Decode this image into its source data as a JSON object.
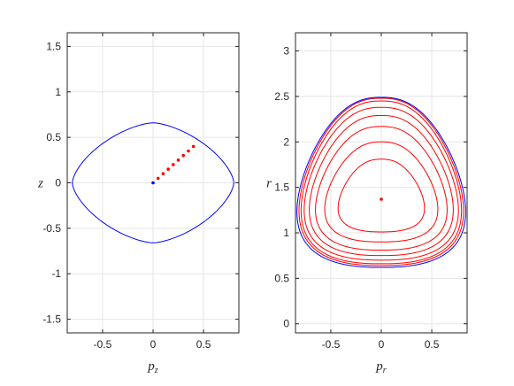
{
  "chart_data": [
    {
      "type": "line",
      "xlabel": "p",
      "xlabel_sub": "z",
      "ylabel": "z",
      "xlim": [
        -0.85,
        0.85
      ],
      "ylim": [
        -1.65,
        1.65
      ],
      "xticks": [
        -0.5,
        0,
        0.5
      ],
      "xtick_labels": [
        "-0.5",
        "0",
        "0.5"
      ],
      "yticks": [
        -1.5,
        -1,
        -0.5,
        0,
        0.5,
        1,
        1.5
      ],
      "ytick_labels": [
        "-1.5",
        "-1",
        "-0.5",
        "0",
        "0.5",
        "1",
        "1.5"
      ],
      "grid": true,
      "series": [
        {
          "kind": "closed-curve",
          "color": "#0000ff",
          "cx": 0,
          "cy": 0,
          "rx": 0.8,
          "ry": 0.66,
          "exponent": 1.55
        }
      ],
      "points": [
        {
          "x": 0.0,
          "y": 0.0,
          "color": "#0000ff"
        },
        {
          "x": 0.05,
          "y": 0.05,
          "color": "#ff0000"
        },
        {
          "x": 0.1,
          "y": 0.1,
          "color": "#ff0000"
        },
        {
          "x": 0.15,
          "y": 0.15,
          "color": "#ff0000"
        },
        {
          "x": 0.2,
          "y": 0.2,
          "color": "#ff0000"
        },
        {
          "x": 0.25,
          "y": 0.25,
          "color": "#ff0000"
        },
        {
          "x": 0.3,
          "y": 0.3,
          "color": "#ff0000"
        },
        {
          "x": 0.35,
          "y": 0.35,
          "color": "#ff0000"
        },
        {
          "x": 0.4,
          "y": 0.4,
          "color": "#ff0000"
        }
      ]
    },
    {
      "type": "line",
      "xlabel": "p",
      "xlabel_sub": "r",
      "ylabel": "r",
      "xlim": [
        -0.85,
        0.85
      ],
      "ylim": [
        -0.1,
        3.2
      ],
      "xticks": [
        -0.5,
        0,
        0.5
      ],
      "xtick_labels": [
        "-0.5",
        "0",
        "0.5"
      ],
      "yticks": [
        0,
        0.5,
        1,
        1.5,
        2,
        2.5,
        3
      ],
      "ytick_labels": [
        "0",
        "0.5",
        "1",
        "1.5",
        "2",
        "2.5",
        "3"
      ],
      "grid": true,
      "series": [
        {
          "kind": "loop",
          "color": "#0000ff",
          "top": 2.49,
          "bottom": 0.62,
          "halfwidth": 0.82
        },
        {
          "kind": "loop",
          "color": "#ff0000",
          "top": 2.48,
          "bottom": 0.64,
          "halfwidth": 0.8
        },
        {
          "kind": "loop",
          "color": "#ff0000",
          "top": 2.45,
          "bottom": 0.66,
          "halfwidth": 0.78
        },
        {
          "kind": "loop",
          "color": "#ff0000",
          "top": 2.38,
          "bottom": 0.7,
          "halfwidth": 0.75
        },
        {
          "kind": "loop",
          "color": "#ff0000",
          "top": 2.29,
          "bottom": 0.75,
          "halfwidth": 0.7
        },
        {
          "kind": "loop",
          "color": "#ff0000",
          "top": 2.17,
          "bottom": 0.81,
          "halfwidth": 0.64
        },
        {
          "kind": "loop",
          "color": "#ff0000",
          "top": 2.0,
          "bottom": 0.9,
          "halfwidth": 0.55
        },
        {
          "kind": "loop",
          "color": "#ff0000",
          "top": 1.81,
          "bottom": 1.01,
          "halfwidth": 0.42
        }
      ],
      "points": [
        {
          "x": 0.0,
          "y": 1.37,
          "color": "#ff0000"
        }
      ]
    }
  ]
}
